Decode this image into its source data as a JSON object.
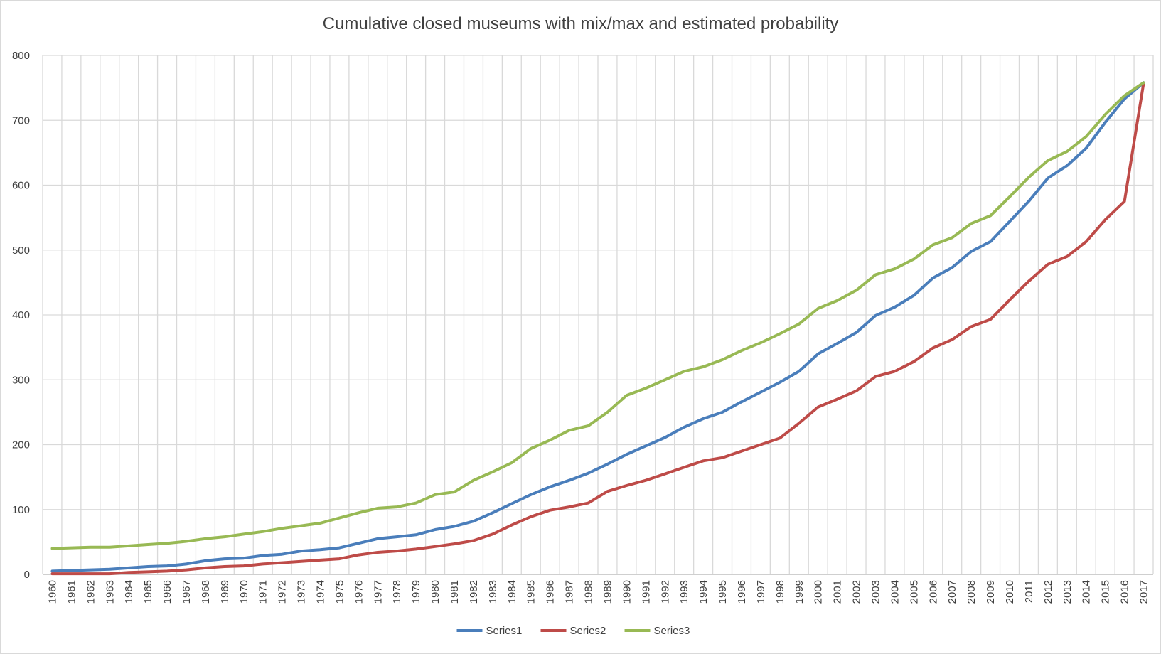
{
  "chart_data": {
    "type": "line",
    "title": "Cumulative closed museums with mix/max and estimated probability",
    "xlabel": "",
    "ylabel": "",
    "ylim": [
      0,
      800
    ],
    "yticks": [
      0,
      100,
      200,
      300,
      400,
      500,
      600,
      700,
      800
    ],
    "grid": true,
    "legend_position": "bottom",
    "categories": [
      "1960",
      "1961",
      "1962",
      "1963",
      "1964",
      "1965",
      "1966",
      "1967",
      "1968",
      "1969",
      "1970",
      "1971",
      "1972",
      "1973",
      "1974",
      "1975",
      "1976",
      "1977",
      "1978",
      "1979",
      "1980",
      "1981",
      "1982",
      "1983",
      "1984",
      "1985",
      "1986",
      "1987",
      "1988",
      "1989",
      "1990",
      "1991",
      "1992",
      "1993",
      "1994",
      "1995",
      "1996",
      "1997",
      "1998",
      "1999",
      "2000",
      "2001",
      "2002",
      "2003",
      "2004",
      "2005",
      "2006",
      "2007",
      "2008",
      "2009",
      "2010",
      "2011",
      "2012",
      "2013",
      "2014",
      "2015",
      "2016",
      "2017"
    ],
    "series": [
      {
        "name": "Series1",
        "color": "#4a7ebb",
        "values": [
          5,
          6,
          7,
          8,
          10,
          12,
          13,
          16,
          21,
          24,
          25,
          29,
          31,
          36,
          38,
          41,
          48,
          55,
          58,
          61,
          69,
          74,
          82,
          95,
          109,
          123,
          135,
          145,
          156,
          170,
          185,
          198,
          211,
          227,
          240,
          250,
          266,
          281,
          296,
          313,
          340,
          356,
          373,
          399,
          412,
          430,
          457,
          473,
          498,
          513,
          544,
          575,
          611,
          630,
          657,
          697,
          733,
          758
        ]
      },
      {
        "name": "Series2",
        "color": "#be4b48",
        "values": [
          1,
          1,
          1,
          1,
          3,
          4,
          5,
          7,
          10,
          12,
          13,
          16,
          18,
          20,
          22,
          24,
          30,
          34,
          36,
          39,
          43,
          47,
          52,
          62,
          76,
          89,
          99,
          104,
          110,
          128,
          137,
          145,
          155,
          165,
          175,
          180,
          190,
          200,
          210,
          233,
          258,
          270,
          283,
          305,
          313,
          328,
          349,
          362,
          382,
          393,
          423,
          452,
          478,
          490,
          513,
          547,
          575,
          757
        ]
      },
      {
        "name": "Series3",
        "color": "#98b954",
        "values": [
          40,
          41,
          42,
          42,
          44,
          46,
          48,
          51,
          55,
          58,
          62,
          66,
          71,
          75,
          79,
          87,
          95,
          102,
          104,
          110,
          123,
          127,
          145,
          158,
          172,
          194,
          207,
          222,
          229,
          250,
          276,
          287,
          300,
          313,
          320,
          331,
          345,
          357,
          371,
          386,
          410,
          422,
          438,
          462,
          471,
          486,
          508,
          519,
          541,
          553,
          582,
          612,
          638,
          652,
          675,
          709,
          738,
          758
        ]
      }
    ]
  }
}
